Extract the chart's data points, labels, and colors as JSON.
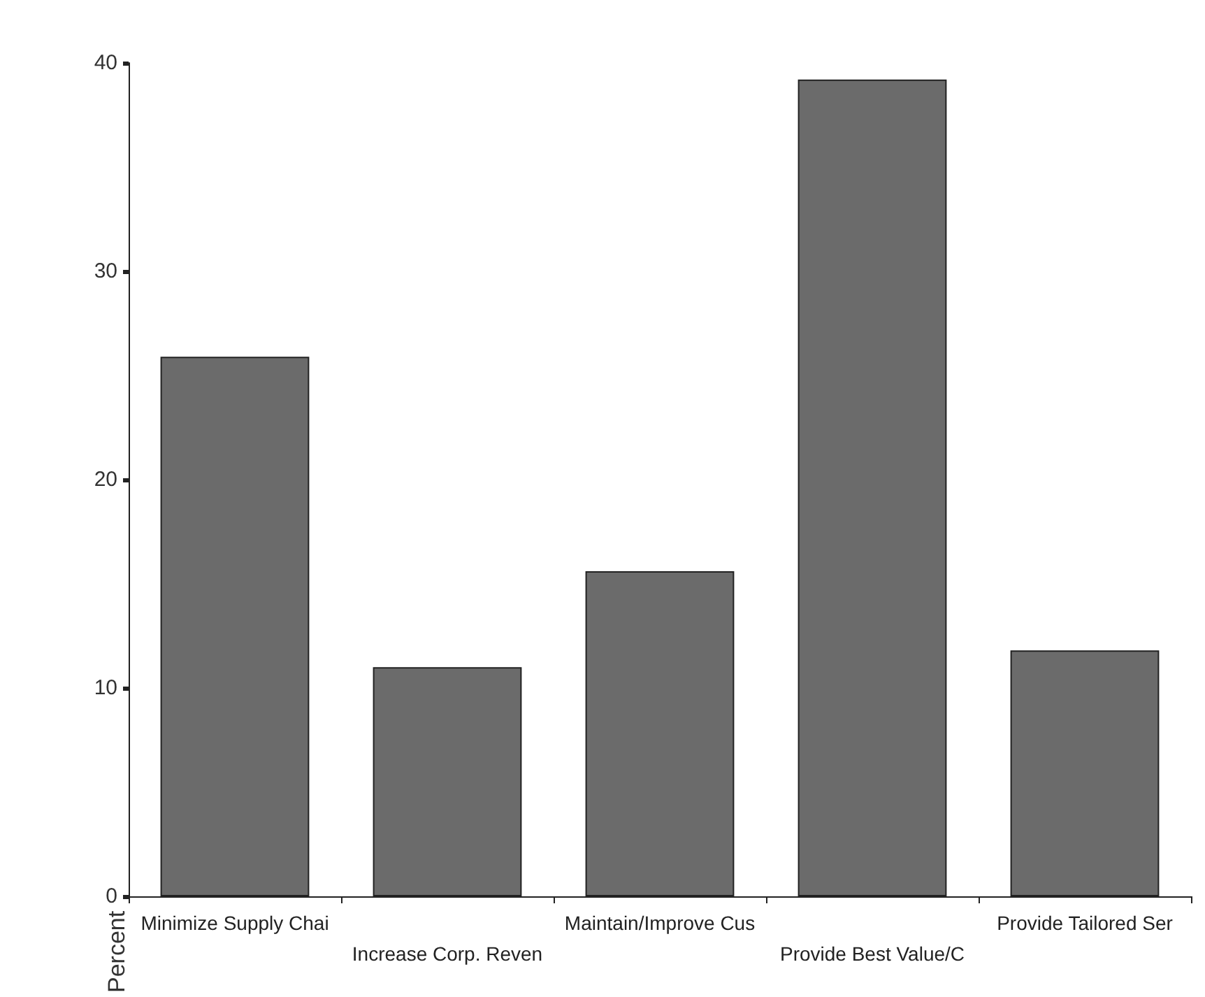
{
  "chart_data": {
    "type": "bar",
    "ylabel": "Percent",
    "categories": [
      "Minimize Supply Chai",
      "Increase Corp. Reven",
      "Maintain/Improve Cus",
      "Provide Best Value/C",
      "Provide Tailored Ser"
    ],
    "values": [
      25.9,
      11.0,
      15.6,
      39.2,
      11.8
    ],
    "color": "#6b6b6b",
    "ylim": [
      0,
      40
    ],
    "yticks": [
      0,
      10,
      20,
      30,
      40
    ],
    "grid": false
  }
}
